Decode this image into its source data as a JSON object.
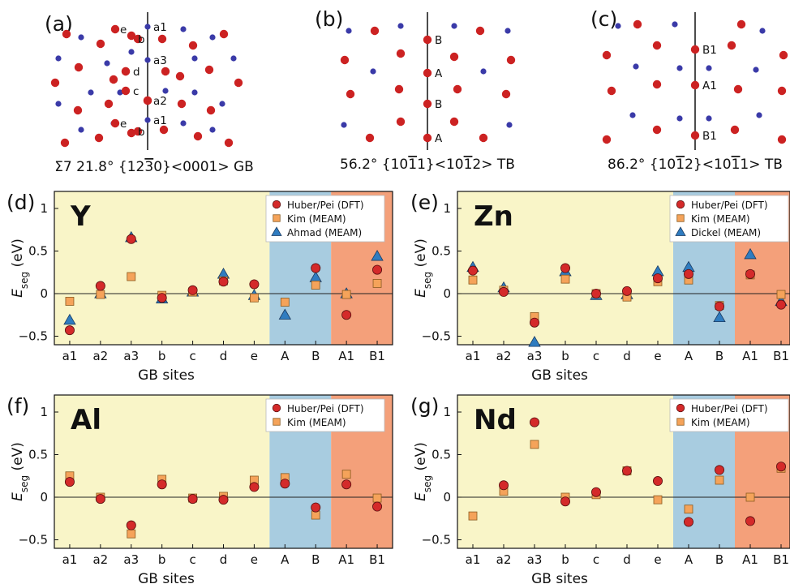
{
  "colors": {
    "red_atom": "#cc2222",
    "blue_atom": "#3a3aa8",
    "yellow_bg": "#f9f5c8",
    "blue_bg": "#a8cce0",
    "orange_bg": "#f4a07a",
    "dft": "#d42a2a",
    "kim": "#f5a35a",
    "third": "#2f7cc0"
  },
  "structures": [
    {
      "panel": "(a)",
      "caption": "Σ7 21.8° {12",
      "caption_bar": "3",
      "caption_end": "0}<0001> GB",
      "sites": [
        "a1",
        "b",
        "e",
        "a3",
        "d",
        "c",
        "a2",
        "a1",
        "e",
        "b"
      ]
    },
    {
      "panel": "(b)",
      "caption": "56.2° {10",
      "caption_bar": "1",
      "caption_mid": "1}<10",
      "caption_bar2": "1",
      "caption_end": "2> TB",
      "sites": [
        "B",
        "A",
        "B",
        "A"
      ]
    },
    {
      "panel": "(c)",
      "caption": "86.2° {10",
      "caption_bar": "1",
      "caption_mid": "2}<10",
      "caption_bar2": "1",
      "caption_end": "1> TB",
      "sites": [
        "B1",
        "A1",
        "B1"
      ]
    }
  ],
  "chart_data": [
    {
      "type": "scatter",
      "panel": "(d)",
      "element": "Y",
      "xlabel": "GB sites",
      "ylabel": "E",
      "ylabel_sub": "seg",
      "ylabel_unit": " (eV)",
      "categories": [
        "a1",
        "a2",
        "a3",
        "b",
        "c",
        "d",
        "e",
        "A",
        "B",
        "A1",
        "B1"
      ],
      "ylim": [
        -0.6,
        1.2
      ],
      "yticks": [
        "-0.5",
        "0",
        "0.5",
        "1"
      ],
      "series": [
        {
          "name": "Huber/Pei (DFT)",
          "marker": "circle",
          "values": [
            -0.43,
            0.09,
            0.64,
            -0.05,
            0.04,
            0.14,
            0.11,
            null,
            0.3,
            -0.25,
            0.28
          ]
        },
        {
          "name": "Kim (MEAM)",
          "marker": "square",
          "values": [
            -0.09,
            -0.01,
            0.2,
            -0.02,
            0.02,
            0.15,
            -0.05,
            -0.1,
            0.1,
            -0.01,
            0.12
          ]
        },
        {
          "name": "Ahmad (MEAM)",
          "marker": "triangle",
          "values": [
            -0.31,
            0.0,
            0.66,
            -0.06,
            0.02,
            0.23,
            -0.02,
            -0.25,
            0.19,
            0.0,
            0.44
          ]
        }
      ]
    },
    {
      "type": "scatter",
      "panel": "(e)",
      "element": "Zn",
      "xlabel": "GB sites",
      "ylabel": "E",
      "ylabel_sub": "seg",
      "ylabel_unit": " (eV)",
      "categories": [
        "a1",
        "a2",
        "a3",
        "b",
        "c",
        "d",
        "e",
        "A",
        "B",
        "A1",
        "B1"
      ],
      "ylim": [
        -0.6,
        1.2
      ],
      "yticks": [
        "-0.5",
        "0",
        "0.5",
        "1"
      ],
      "series": [
        {
          "name": "Huber/Pei (DFT)",
          "marker": "circle",
          "values": [
            0.27,
            0.02,
            -0.34,
            0.3,
            0.0,
            0.03,
            0.18,
            0.23,
            -0.15,
            0.23,
            -0.13
          ]
        },
        {
          "name": "Kim (MEAM)",
          "marker": "square",
          "values": [
            0.16,
            0.04,
            -0.27,
            0.17,
            0.0,
            -0.04,
            0.14,
            0.16,
            -0.14,
            0.22,
            -0.01
          ]
        },
        {
          "name": "Dickel (MEAM)",
          "marker": "triangle",
          "values": [
            0.31,
            0.07,
            -0.57,
            0.26,
            -0.02,
            -0.01,
            0.26,
            0.31,
            -0.28,
            0.46,
            -0.09
          ]
        }
      ]
    },
    {
      "type": "scatter",
      "panel": "(f)",
      "element": "Al",
      "xlabel": "GB sites",
      "ylabel": "E",
      "ylabel_sub": "seg",
      "ylabel_unit": " (eV)",
      "categories": [
        "a1",
        "a2",
        "a3",
        "b",
        "c",
        "d",
        "e",
        "A",
        "B",
        "A1",
        "B1"
      ],
      "ylim": [
        -0.6,
        1.2
      ],
      "yticks": [
        "-0.5",
        "0",
        "0.5",
        "1"
      ],
      "series": [
        {
          "name": "Huber/Pei (DFT)",
          "marker": "circle",
          "values": [
            0.18,
            -0.02,
            -0.33,
            0.15,
            -0.02,
            -0.03,
            0.12,
            0.16,
            -0.12,
            0.15,
            -0.11
          ]
        },
        {
          "name": "Kim (MEAM)",
          "marker": "square",
          "values": [
            0.25,
            0.0,
            -0.43,
            0.21,
            -0.01,
            0.01,
            0.2,
            0.23,
            -0.21,
            0.27,
            -0.01
          ]
        }
      ]
    },
    {
      "type": "scatter",
      "panel": "(g)",
      "element": "Nd",
      "xlabel": "GB sites",
      "ylabel": "E",
      "ylabel_sub": "seg",
      "ylabel_unit": " (eV)",
      "categories": [
        "a1",
        "a2",
        "a3",
        "b",
        "c",
        "d",
        "e",
        "A",
        "B",
        "A1",
        "B1"
      ],
      "ylim": [
        -0.6,
        1.2
      ],
      "yticks": [
        "-0.5",
        "0",
        "0.5",
        "1"
      ],
      "series": [
        {
          "name": "Huber/Pei (DFT)",
          "marker": "circle",
          "values": [
            null,
            0.14,
            0.88,
            -0.05,
            0.06,
            0.31,
            0.19,
            -0.29,
            0.32,
            -0.28,
            0.36
          ]
        },
        {
          "name": "Kim (MEAM)",
          "marker": "square",
          "values": [
            -0.22,
            0.07,
            0.62,
            0.0,
            0.03,
            0.31,
            -0.03,
            -0.14,
            0.2,
            0.0,
            0.34
          ]
        }
      ]
    }
  ]
}
